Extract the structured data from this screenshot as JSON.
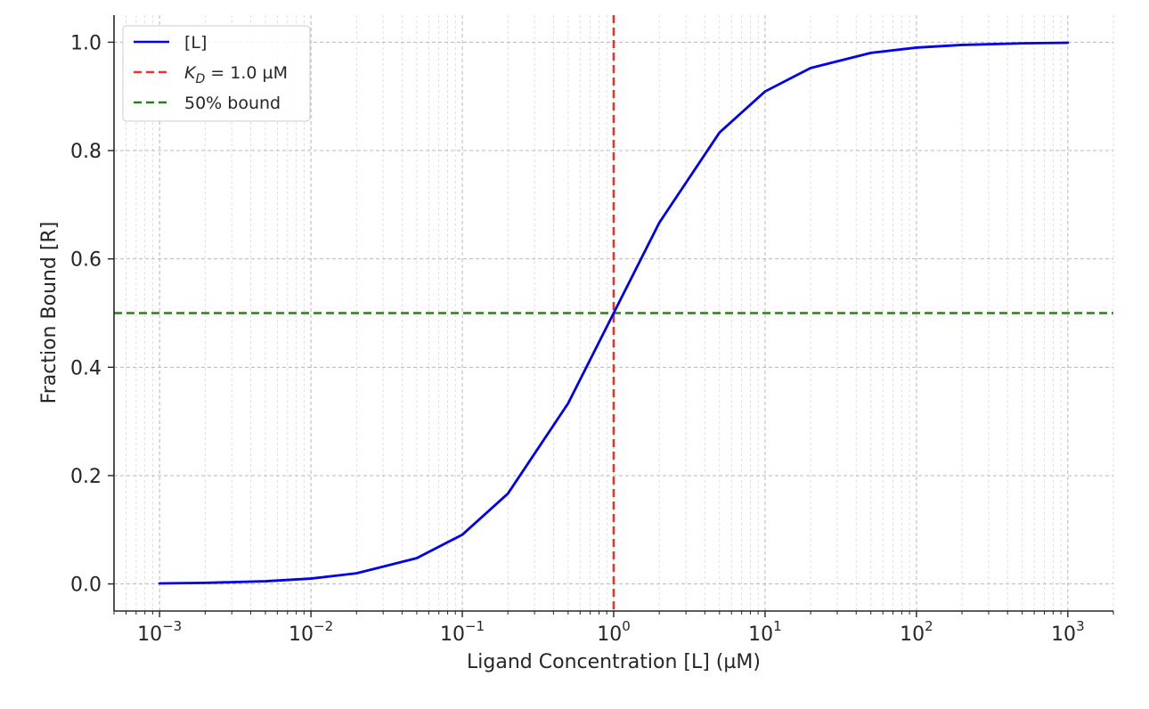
{
  "chart_data": {
    "type": "line",
    "title": "",
    "xlabel": "Ligand Concentration [L] (µM)",
    "ylabel": "Fraction Bound [R]",
    "xscale": "log",
    "xlim": [
      0.0005,
      2000
    ],
    "ylim": [
      -0.05,
      1.05
    ],
    "grid": true,
    "legend_position": "top-left",
    "x_ticks": [
      {
        "value": 0.001,
        "base": "10",
        "exp": "−3"
      },
      {
        "value": 0.01,
        "base": "10",
        "exp": "−2"
      },
      {
        "value": 0.1,
        "base": "10",
        "exp": "−1"
      },
      {
        "value": 1,
        "base": "10",
        "exp": "0"
      },
      {
        "value": 10,
        "base": "10",
        "exp": "1"
      },
      {
        "value": 100,
        "base": "10",
        "exp": "2"
      },
      {
        "value": 1000,
        "base": "10",
        "exp": "3"
      }
    ],
    "y_ticks": [
      {
        "value": 0.0,
        "label": "0.0"
      },
      {
        "value": 0.2,
        "label": "0.2"
      },
      {
        "value": 0.4,
        "label": "0.4"
      },
      {
        "value": 0.6,
        "label": "0.6"
      },
      {
        "value": 0.8,
        "label": "0.8"
      },
      {
        "value": 1.0,
        "label": "1.0"
      }
    ],
    "series": [
      {
        "name": "[L]",
        "color": "#0000ee",
        "x": [
          0.001,
          0.002,
          0.005,
          0.01,
          0.02,
          0.05,
          0.1,
          0.2,
          0.5,
          1,
          2,
          5,
          10,
          20,
          50,
          100,
          200,
          500,
          1000
        ],
        "y": [
          0.001,
          0.002,
          0.005,
          0.0099,
          0.0196,
          0.0476,
          0.0909,
          0.1667,
          0.3333,
          0.5,
          0.6667,
          0.8333,
          0.9091,
          0.9524,
          0.9804,
          0.9901,
          0.995,
          0.998,
          0.999
        ]
      }
    ],
    "reference_lines": [
      {
        "orientation": "vertical",
        "value": 1.0,
        "color": "#e8322b",
        "style": "dashed",
        "label_prefix": "K",
        "label_sub": "D",
        "label_rest": " = 1.0 µM"
      },
      {
        "orientation": "horizontal",
        "value": 0.5,
        "color": "#2e7d1e",
        "style": "dashed",
        "label": "50% bound"
      }
    ]
  }
}
